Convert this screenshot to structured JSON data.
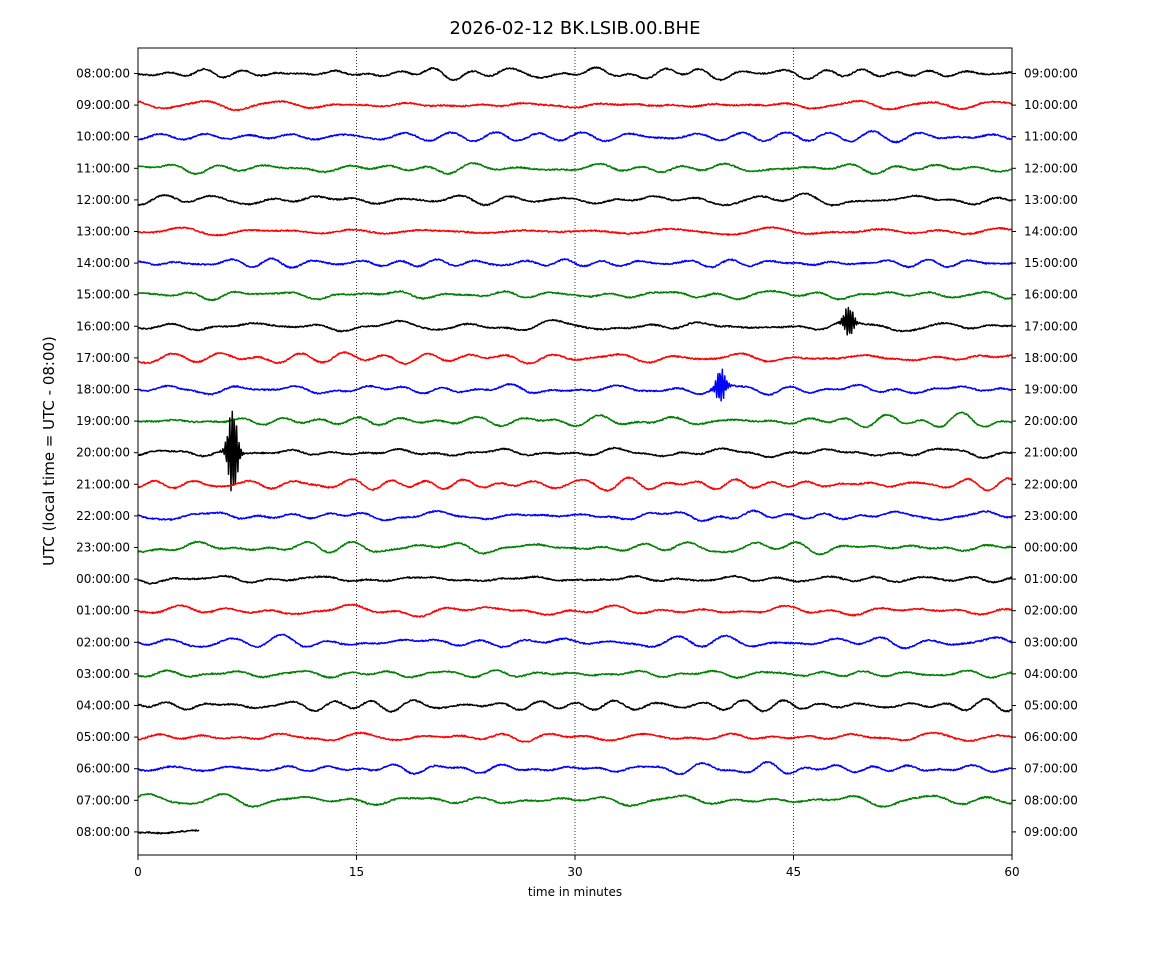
{
  "chart_data": {
    "type": "line",
    "title": "2026-02-12 BK.LSIB.00.BHE",
    "xlabel": "time in minutes",
    "ylabel": "UTC (local time = UTC - 08:00)",
    "xlim": [
      0,
      60
    ],
    "x_ticks": [
      0,
      15,
      30,
      45,
      60
    ],
    "vertical_gridlines_at": [
      15,
      30,
      45
    ],
    "trace_colors": [
      "#000000",
      "#ff0000",
      "#0000ff",
      "#008000"
    ],
    "rows_left": [
      "08:00:00",
      "09:00:00",
      "10:00:00",
      "11:00:00",
      "12:00:00",
      "13:00:00",
      "14:00:00",
      "15:00:00",
      "16:00:00",
      "17:00:00",
      "18:00:00",
      "19:00:00",
      "20:00:00",
      "21:00:00",
      "22:00:00",
      "23:00:00",
      "00:00:00",
      "01:00:00",
      "02:00:00",
      "03:00:00",
      "04:00:00",
      "05:00:00",
      "06:00:00",
      "07:00:00",
      "08:00:00"
    ],
    "rows_right": [
      "09:00:00",
      "10:00:00",
      "11:00:00",
      "12:00:00",
      "13:00:00",
      "14:00:00",
      "15:00:00",
      "16:00:00",
      "17:00:00",
      "18:00:00",
      "19:00:00",
      "20:00:00",
      "21:00:00",
      "22:00:00",
      "23:00:00",
      "00:00:00",
      "01:00:00",
      "02:00:00",
      "03:00:00",
      "04:00:00",
      "05:00:00",
      "06:00:00",
      "07:00:00",
      "08:00:00",
      "09:00:00"
    ],
    "last_row_minutes": 4.2,
    "events": [
      {
        "row": 12,
        "minute": 6.5,
        "amplitude_rows": 1.4,
        "note": "spike"
      },
      {
        "row": 10,
        "minute": 40.0,
        "amplitude_rows": 0.55
      },
      {
        "row": 8,
        "minute": 48.8,
        "amplitude_rows": 0.5
      }
    ]
  }
}
